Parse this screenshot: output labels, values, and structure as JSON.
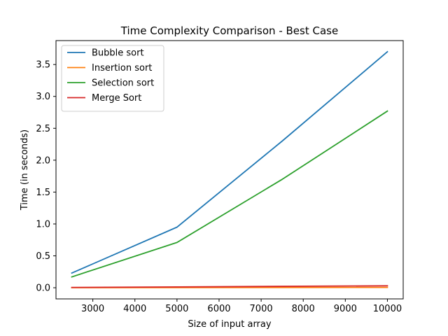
{
  "chart_data": {
    "type": "line",
    "title": "Time Complexity Comparison - Best Case",
    "xlabel": "Size of input array",
    "ylabel": "Time (in seconds)",
    "xlim": [
      2125,
      10375
    ],
    "ylim": [
      -0.175,
      3.875
    ],
    "xticks": [
      3000,
      4000,
      5000,
      6000,
      7000,
      8000,
      9000,
      10000
    ],
    "yticks": [
      0.0,
      0.5,
      1.0,
      1.5,
      2.0,
      2.5,
      3.0,
      3.5
    ],
    "ytick_labels": [
      "0.0",
      "0.5",
      "1.0",
      "1.5",
      "2.0",
      "2.5",
      "3.0",
      "3.5"
    ],
    "grid": false,
    "legend_position": "top-left",
    "x": [
      2500,
      5000,
      7500,
      10000
    ],
    "series": [
      {
        "name": "Bubble sort",
        "color": "#1f77b4",
        "values": [
          0.23,
          0.95,
          2.3,
          3.7
        ]
      },
      {
        "name": "Insertion sort",
        "color": "#ff7f0e",
        "values": [
          0.001,
          0.002,
          0.004,
          0.005
        ]
      },
      {
        "name": "Selection sort",
        "color": "#2ca02c",
        "values": [
          0.17,
          0.71,
          1.7,
          2.77
        ]
      },
      {
        "name": "Merge Sort",
        "color": "#d62728",
        "values": [
          0.005,
          0.013,
          0.022,
          0.03
        ]
      }
    ]
  }
}
